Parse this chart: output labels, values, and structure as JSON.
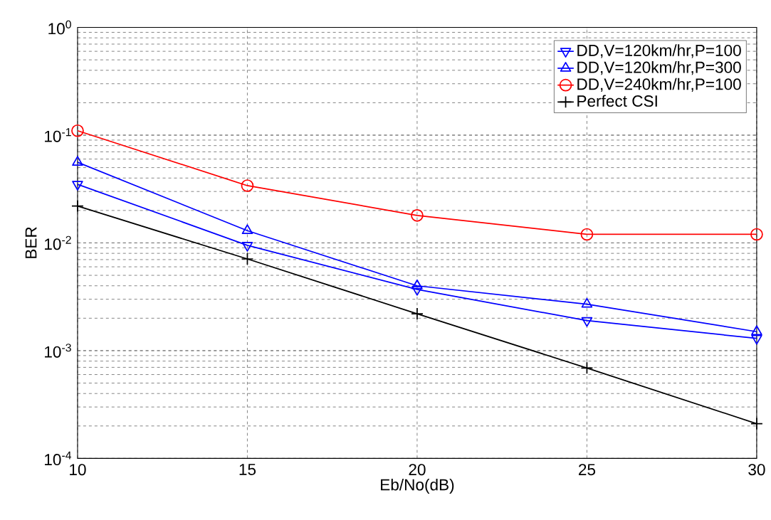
{
  "chart_data": {
    "type": "line",
    "xlabel": "Eb/No(dB)",
    "ylabel": "BER",
    "log": "y",
    "grid": true,
    "legend": "top right",
    "x": [
      10,
      15,
      20,
      25,
      30
    ],
    "xlim": [
      10,
      30
    ],
    "xticks": [
      10,
      15,
      20,
      25,
      30
    ],
    "ylim": [
      0.0001,
      1
    ],
    "yticks": [
      {
        "value": 0.0001,
        "label": "10$^{-4}$"
      },
      {
        "value": 0.001,
        "label": "10$^{-3}$"
      },
      {
        "value": 0.01,
        "label": "10$^{-2}$"
      },
      {
        "value": 0.1,
        "label": "10$^{-1}$"
      },
      {
        "value": 1,
        "label": "10$^{0}$"
      }
    ],
    "series": [
      {
        "name": "DD,V=120km/hr,P=100",
        "color": "#0000ff",
        "marker": "triangle-down",
        "values": [
          0.035,
          0.0095,
          0.0037,
          0.0019,
          0.0013
        ]
      },
      {
        "name": "DD,V=120km/hr,P=300",
        "color": "#0000ff",
        "marker": "triangle",
        "values": [
          0.056,
          0.013,
          0.004,
          0.0027,
          0.0015
        ]
      },
      {
        "name": "DD,V=240km/hr,P=100",
        "color": "#ff0000",
        "marker": "circle",
        "values": [
          0.11,
          0.034,
          0.018,
          0.012,
          0.012
        ]
      },
      {
        "name": "Perfect CSI",
        "color": "#000000",
        "marker": "cross",
        "values": [
          0.022,
          0.0071,
          0.0022,
          0.00069,
          0.00021
        ]
      }
    ]
  }
}
